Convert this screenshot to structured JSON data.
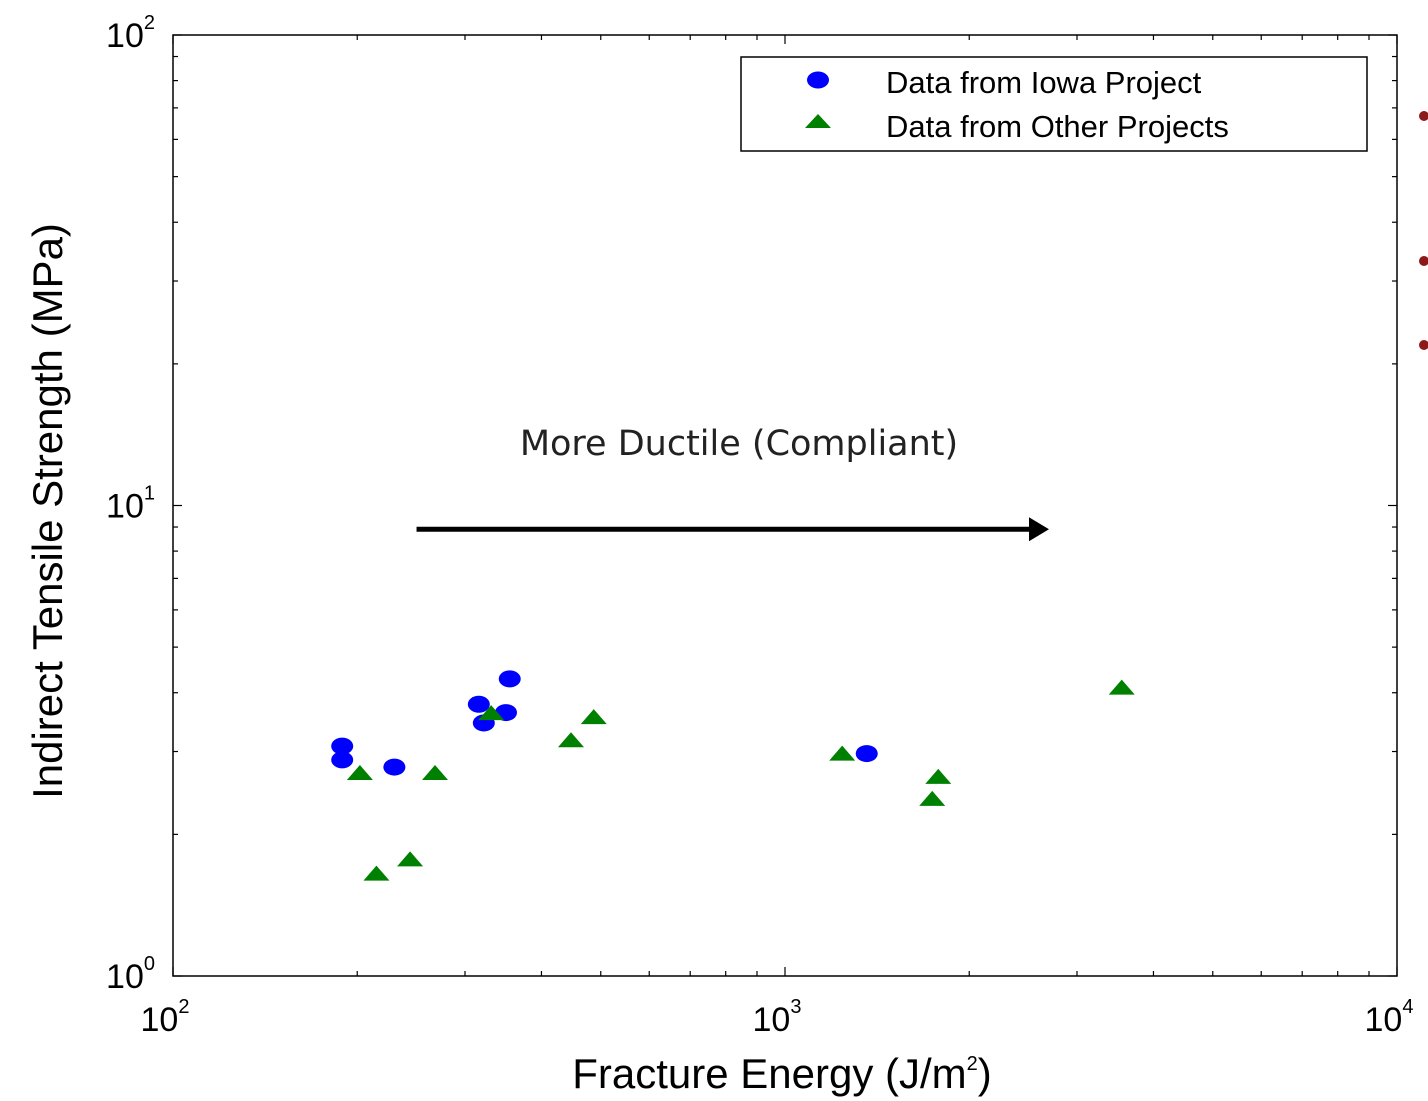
{
  "chart_data": {
    "type": "scatter",
    "xscale": "log",
    "yscale": "log",
    "xlim": [
      100,
      10000
    ],
    "ylim": [
      1,
      100
    ],
    "grid": false,
    "legend_position": "top-right",
    "xlabel": "Fracture Energy (J/m",
    "xlabel_sup": "2",
    "xlabel_end": ")",
    "ylabel": "Indirect Tensile Strength (MPa)",
    "xticks": [
      {
        "base": "10",
        "exp": "2",
        "value": 100
      },
      {
        "base": "10",
        "exp": "3",
        "value": 1000
      },
      {
        "base": "10",
        "exp": "4",
        "value": 10000
      }
    ],
    "yticks": [
      {
        "base": "10",
        "exp": "0",
        "value": 1
      },
      {
        "base": "10",
        "exp": "1",
        "value": 10
      },
      {
        "base": "10",
        "exp": "2",
        "value": 100
      }
    ],
    "annotation": "More Ductile (Compliant)",
    "annotation_arrow": {
      "from_x": 250,
      "to_x": 2700,
      "y": 8.9
    },
    "series": [
      {
        "name": "Data from Iowa Project",
        "marker": "circle",
        "color": "#0000ff",
        "points": [
          {
            "x": 189,
            "y": 3.08
          },
          {
            "x": 189,
            "y": 2.88
          },
          {
            "x": 230,
            "y": 2.78
          },
          {
            "x": 316,
            "y": 3.78
          },
          {
            "x": 322,
            "y": 3.45
          },
          {
            "x": 350,
            "y": 3.63
          },
          {
            "x": 355,
            "y": 4.28
          },
          {
            "x": 1360,
            "y": 2.97
          }
        ]
      },
      {
        "name": "Data from Other Projects",
        "marker": "triangle",
        "color": "#008000",
        "points": [
          {
            "x": 202,
            "y": 2.7
          },
          {
            "x": 268,
            "y": 2.7
          },
          {
            "x": 215,
            "y": 1.65
          },
          {
            "x": 244,
            "y": 1.77
          },
          {
            "x": 331,
            "y": 3.62
          },
          {
            "x": 447,
            "y": 3.17
          },
          {
            "x": 487,
            "y": 3.55
          },
          {
            "x": 1240,
            "y": 2.97
          },
          {
            "x": 1740,
            "y": 2.38
          },
          {
            "x": 1780,
            "y": 2.65
          },
          {
            "x": 3550,
            "y": 4.1
          }
        ]
      }
    ]
  },
  "side_bullets": {
    "color": "#8b1a1a",
    "count": 3
  }
}
